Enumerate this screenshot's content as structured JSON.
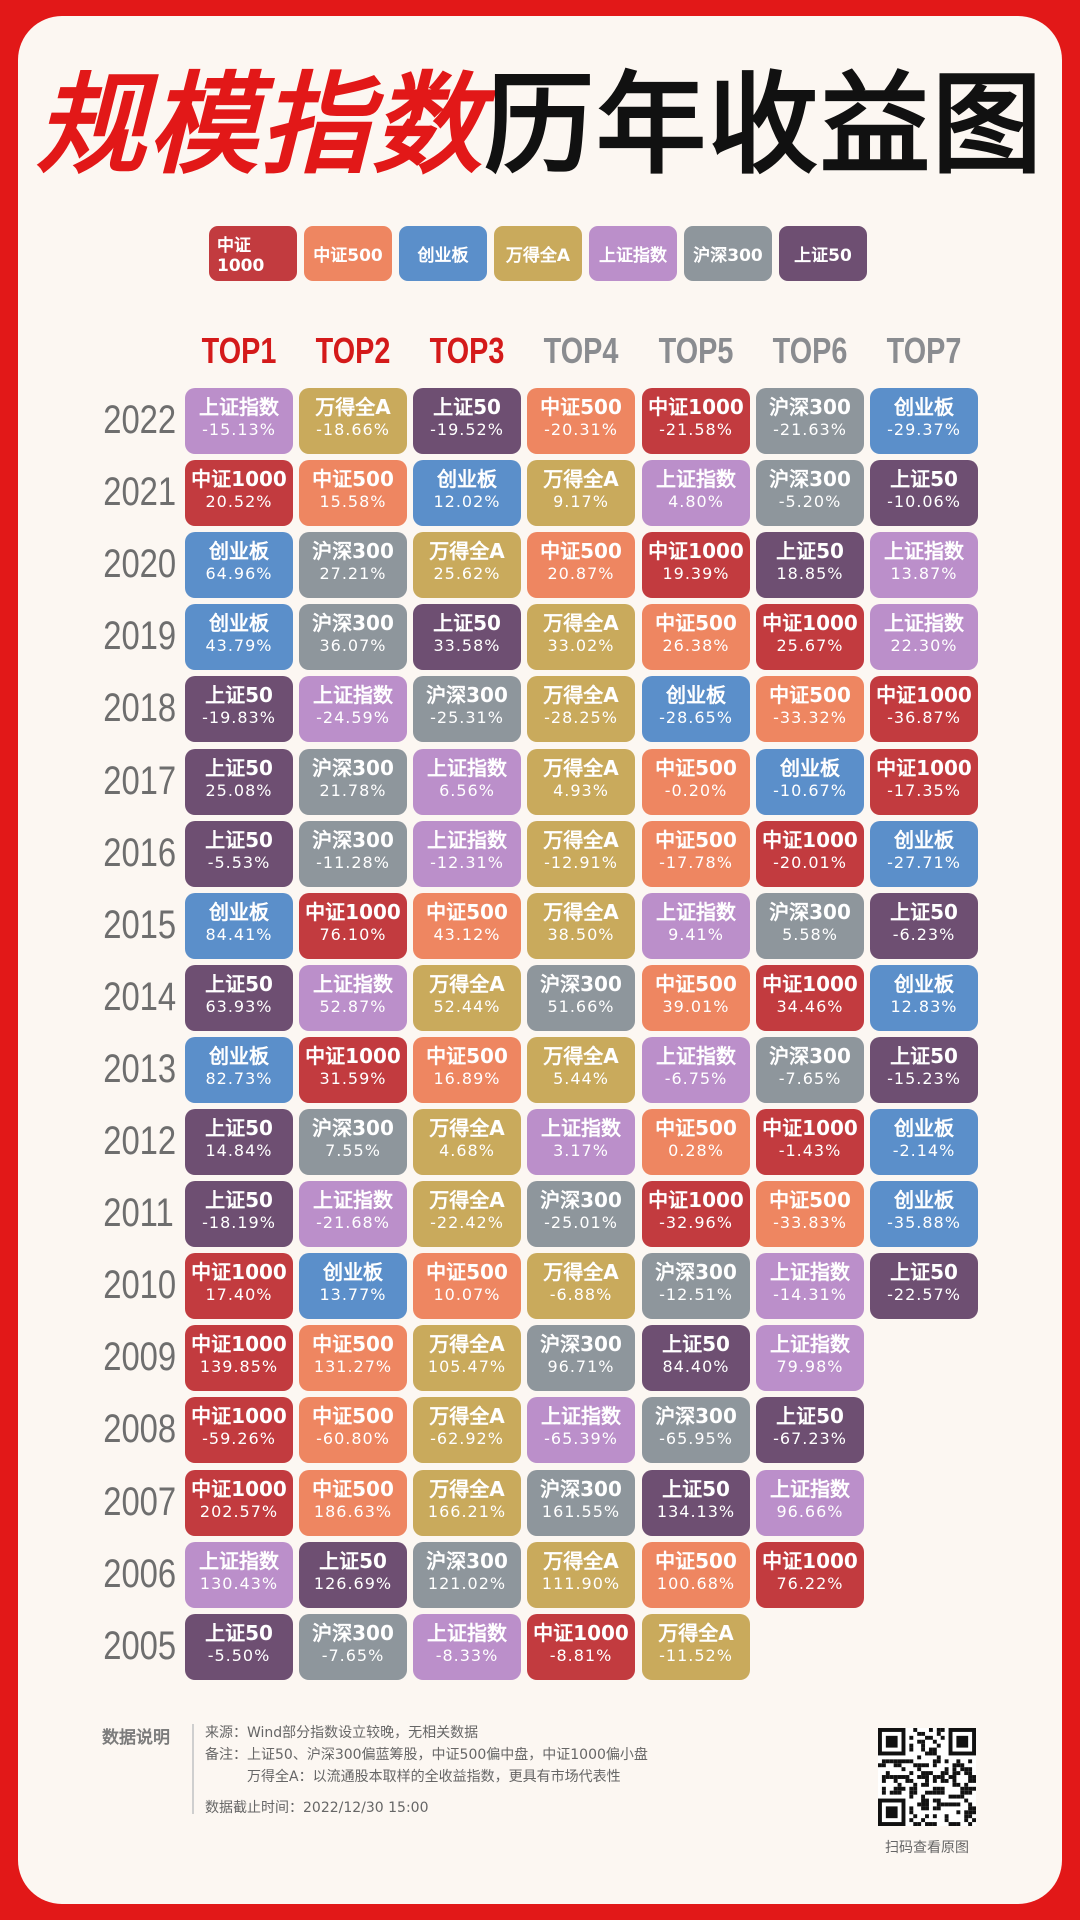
{
  "title": {
    "red": "规模指数",
    "black": "历年收益图"
  },
  "colors": {
    "中证1000": "#c23b3f",
    "中证500": "#ee8661",
    "创业板": "#5b8fca",
    "万得全A": "#c9aa5c",
    "上证指数": "#bb8fca",
    "沪深300": "#8e969c",
    "上证50": "#6e4f72"
  },
  "legend": [
    "中证1000",
    "中证500",
    "创业板",
    "万得全A",
    "上证指数",
    "沪深300",
    "上证50"
  ],
  "chart_data": {
    "type": "table",
    "columns": [
      "TOP1",
      "TOP2",
      "TOP3",
      "TOP4",
      "TOP5",
      "TOP6",
      "TOP7"
    ],
    "rows": [
      {
        "year": "2022",
        "cells": [
          [
            "上证指数",
            "-15.13%"
          ],
          [
            "万得全A",
            "-18.66%"
          ],
          [
            "上证50",
            "-19.52%"
          ],
          [
            "中证500",
            "-20.31%"
          ],
          [
            "中证1000",
            "-21.58%"
          ],
          [
            "沪深300",
            "-21.63%"
          ],
          [
            "创业板",
            "-29.37%"
          ]
        ]
      },
      {
        "year": "2021",
        "cells": [
          [
            "中证1000",
            "20.52%"
          ],
          [
            "中证500",
            "15.58%"
          ],
          [
            "创业板",
            "12.02%"
          ],
          [
            "万得全A",
            "9.17%"
          ],
          [
            "上证指数",
            "4.80%"
          ],
          [
            "沪深300",
            "-5.20%"
          ],
          [
            "上证50",
            "-10.06%"
          ]
        ]
      },
      {
        "year": "2020",
        "cells": [
          [
            "创业板",
            "64.96%"
          ],
          [
            "沪深300",
            "27.21%"
          ],
          [
            "万得全A",
            "25.62%"
          ],
          [
            "中证500",
            "20.87%"
          ],
          [
            "中证1000",
            "19.39%"
          ],
          [
            "上证50",
            "18.85%"
          ],
          [
            "上证指数",
            "13.87%"
          ]
        ]
      },
      {
        "year": "2019",
        "cells": [
          [
            "创业板",
            "43.79%"
          ],
          [
            "沪深300",
            "36.07%"
          ],
          [
            "上证50",
            "33.58%"
          ],
          [
            "万得全A",
            "33.02%"
          ],
          [
            "中证500",
            "26.38%"
          ],
          [
            "中证1000",
            "25.67%"
          ],
          [
            "上证指数",
            "22.30%"
          ]
        ]
      },
      {
        "year": "2018",
        "cells": [
          [
            "上证50",
            "-19.83%"
          ],
          [
            "上证指数",
            "-24.59%"
          ],
          [
            "沪深300",
            "-25.31%"
          ],
          [
            "万得全A",
            "-28.25%"
          ],
          [
            "创业板",
            "-28.65%"
          ],
          [
            "中证500",
            "-33.32%"
          ],
          [
            "中证1000",
            "-36.87%"
          ]
        ]
      },
      {
        "year": "2017",
        "cells": [
          [
            "上证50",
            "25.08%"
          ],
          [
            "沪深300",
            "21.78%"
          ],
          [
            "上证指数",
            "6.56%"
          ],
          [
            "万得全A",
            "4.93%"
          ],
          [
            "中证500",
            "-0.20%"
          ],
          [
            "创业板",
            "-10.67%"
          ],
          [
            "中证1000",
            "-17.35%"
          ]
        ]
      },
      {
        "year": "2016",
        "cells": [
          [
            "上证50",
            "-5.53%"
          ],
          [
            "沪深300",
            "-11.28%"
          ],
          [
            "上证指数",
            "-12.31%"
          ],
          [
            "万得全A",
            "-12.91%"
          ],
          [
            "中证500",
            "-17.78%"
          ],
          [
            "中证1000",
            "-20.01%"
          ],
          [
            "创业板",
            "-27.71%"
          ]
        ]
      },
      {
        "year": "2015",
        "cells": [
          [
            "创业板",
            "84.41%"
          ],
          [
            "中证1000",
            "76.10%"
          ],
          [
            "中证500",
            "43.12%"
          ],
          [
            "万得全A",
            "38.50%"
          ],
          [
            "上证指数",
            "9.41%"
          ],
          [
            "沪深300",
            "5.58%"
          ],
          [
            "上证50",
            "-6.23%"
          ]
        ]
      },
      {
        "year": "2014",
        "cells": [
          [
            "上证50",
            "63.93%"
          ],
          [
            "上证指数",
            "52.87%"
          ],
          [
            "万得全A",
            "52.44%"
          ],
          [
            "沪深300",
            "51.66%"
          ],
          [
            "中证500",
            "39.01%"
          ],
          [
            "中证1000",
            "34.46%"
          ],
          [
            "创业板",
            "12.83%"
          ]
        ]
      },
      {
        "year": "2013",
        "cells": [
          [
            "创业板",
            "82.73%"
          ],
          [
            "中证1000",
            "31.59%"
          ],
          [
            "中证500",
            "16.89%"
          ],
          [
            "万得全A",
            "5.44%"
          ],
          [
            "上证指数",
            "-6.75%"
          ],
          [
            "沪深300",
            "-7.65%"
          ],
          [
            "上证50",
            "-15.23%"
          ]
        ]
      },
      {
        "year": "2012",
        "cells": [
          [
            "上证50",
            "14.84%"
          ],
          [
            "沪深300",
            "7.55%"
          ],
          [
            "万得全A",
            "4.68%"
          ],
          [
            "上证指数",
            "3.17%"
          ],
          [
            "中证500",
            "0.28%"
          ],
          [
            "中证1000",
            "-1.43%"
          ],
          [
            "创业板",
            "-2.14%"
          ]
        ]
      },
      {
        "year": "2011",
        "cells": [
          [
            "上证50",
            "-18.19%"
          ],
          [
            "上证指数",
            "-21.68%"
          ],
          [
            "万得全A",
            "-22.42%"
          ],
          [
            "沪深300",
            "-25.01%"
          ],
          [
            "中证1000",
            "-32.96%"
          ],
          [
            "中证500",
            "-33.83%"
          ],
          [
            "创业板",
            "-35.88%"
          ]
        ]
      },
      {
        "year": "2010",
        "cells": [
          [
            "中证1000",
            "17.40%"
          ],
          [
            "创业板",
            "13.77%"
          ],
          [
            "中证500",
            "10.07%"
          ],
          [
            "万得全A",
            "-6.88%"
          ],
          [
            "沪深300",
            "-12.51%"
          ],
          [
            "上证指数",
            "-14.31%"
          ],
          [
            "上证50",
            "-22.57%"
          ]
        ]
      },
      {
        "year": "2009",
        "cells": [
          [
            "中证1000",
            "139.85%"
          ],
          [
            "中证500",
            "131.27%"
          ],
          [
            "万得全A",
            "105.47%"
          ],
          [
            "沪深300",
            "96.71%"
          ],
          [
            "上证50",
            "84.40%"
          ],
          [
            "上证指数",
            "79.98%"
          ]
        ]
      },
      {
        "year": "2008",
        "cells": [
          [
            "中证1000",
            "-59.26%"
          ],
          [
            "中证500",
            "-60.80%"
          ],
          [
            "万得全A",
            "-62.92%"
          ],
          [
            "上证指数",
            "-65.39%"
          ],
          [
            "沪深300",
            "-65.95%"
          ],
          [
            "上证50",
            "-67.23%"
          ]
        ]
      },
      {
        "year": "2007",
        "cells": [
          [
            "中证1000",
            "202.57%"
          ],
          [
            "中证500",
            "186.63%"
          ],
          [
            "万得全A",
            "166.21%"
          ],
          [
            "沪深300",
            "161.55%"
          ],
          [
            "上证50",
            "134.13%"
          ],
          [
            "上证指数",
            "96.66%"
          ]
        ]
      },
      {
        "year": "2006",
        "cells": [
          [
            "上证指数",
            "130.43%"
          ],
          [
            "上证50",
            "126.69%"
          ],
          [
            "沪深300",
            "121.02%"
          ],
          [
            "万得全A",
            "111.90%"
          ],
          [
            "中证500",
            "100.68%"
          ],
          [
            "中证1000",
            "76.22%"
          ]
        ]
      },
      {
        "year": "2005",
        "cells": [
          [
            "上证50",
            "-5.50%"
          ],
          [
            "沪深300",
            "-7.65%"
          ],
          [
            "上证指数",
            "-8.33%"
          ],
          [
            "中证1000",
            "-8.81%"
          ],
          [
            "万得全A",
            "-11.52%"
          ]
        ]
      }
    ]
  },
  "notes": {
    "heading": "数据说明",
    "source": "来源：Wind部分指数设立较晚，无相关数据",
    "remark1": "备注：上证50、沪深300偏蓝筹股，中证500偏中盘，中证1000偏小盘",
    "remark2": "万得全A：以流通股本取样的全收益指数，更具有市场代表性",
    "cutoff": "数据截止时间：2022/12/30 15:00",
    "qr_caption": "扫码查看原图"
  }
}
